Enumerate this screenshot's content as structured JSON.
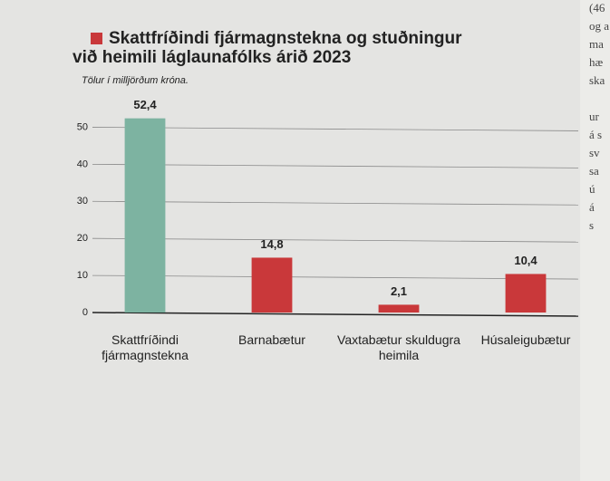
{
  "chart_data": {
    "type": "bar",
    "title": [
      "Skattfríðindi fjármagnstekna og stuðningur",
      "við heimili láglaunafólks árið 2023"
    ],
    "subtitle": "Tölur í milljörðum króna.",
    "categories": [
      "Skattfríðindi fjármagnstekna",
      "Barnabætur",
      "Vaxtabætur skuldugra heimila",
      "Húsaleigubætur"
    ],
    "values": [
      52.4,
      14.8,
      2.1,
      10.4
    ],
    "value_labels": [
      "52,4",
      "14,8",
      "2,1",
      "10,4"
    ],
    "colors": [
      "#7db3a1",
      "#c9383a",
      "#c9383a",
      "#c9383a"
    ],
    "ylim": [
      0,
      55
    ],
    "yticks": [
      0,
      10,
      20,
      30,
      40,
      50
    ],
    "grid": true
  },
  "side_text": [
    "(46",
    "og a",
    "ma",
    "hæ",
    "ska",
    "ur",
    "á s",
    "sv",
    "sa",
    "ú",
    "á",
    "s"
  ]
}
